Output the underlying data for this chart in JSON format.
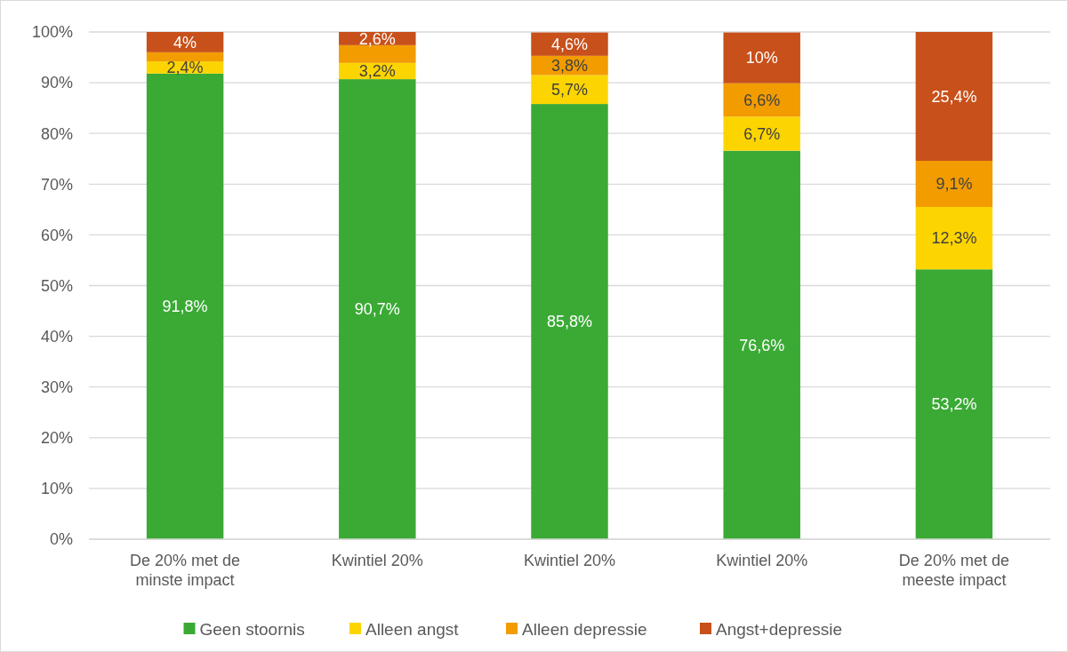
{
  "chart_data": {
    "type": "bar",
    "stacked": true,
    "categories": [
      "De 20% met de minste impact",
      "Kwintiel 20%",
      "Kwintiel 20%",
      "Kwintiel 20%",
      "De 20% met de meeste impact"
    ],
    "series": [
      {
        "name": "Geen stoornis",
        "color": "#3aaa35",
        "values": [
          91.8,
          90.7,
          85.8,
          76.6,
          53.2
        ],
        "value_labels": [
          "91,8%",
          "90,7%",
          "85,8%",
          "76,6%",
          "53,2%"
        ]
      },
      {
        "name": "Alleen angst",
        "color": "#fcd500",
        "values": [
          2.4,
          3.2,
          5.7,
          6.7,
          12.3
        ],
        "value_labels": [
          "2,4%",
          "3,2%",
          "5,7%",
          "6,7%",
          "12,3%"
        ]
      },
      {
        "name": "Alleen depressie",
        "color": "#f29c00",
        "values": [
          1.8,
          3.5,
          3.8,
          6.6,
          9.1
        ],
        "value_labels": [
          null,
          null,
          "3,8%",
          "6,6%",
          "9,1%"
        ]
      },
      {
        "name": "Angst+depressie",
        "color": "#c8501a",
        "values": [
          4,
          2.6,
          4.6,
          10,
          25.4
        ],
        "value_labels": [
          "4%",
          "2,6%",
          "4,6%",
          "10%",
          "25,4%"
        ]
      }
    ],
    "ylim": [
      0,
      100
    ],
    "yticks": [
      {
        "value": 0,
        "label": "0%"
      },
      {
        "value": 10,
        "label": "10%"
      },
      {
        "value": 20,
        "label": "20%"
      },
      {
        "value": 30,
        "label": "30%"
      },
      {
        "value": 40,
        "label": "40%"
      },
      {
        "value": 50,
        "label": "50%"
      },
      {
        "value": 60,
        "label": "60%"
      },
      {
        "value": 70,
        "label": "70%"
      },
      {
        "value": 80,
        "label": "80%"
      },
      {
        "value": 90,
        "label": "90%"
      },
      {
        "value": 100,
        "label": "100%"
      }
    ],
    "grid": "y",
    "legend": "bottom"
  }
}
